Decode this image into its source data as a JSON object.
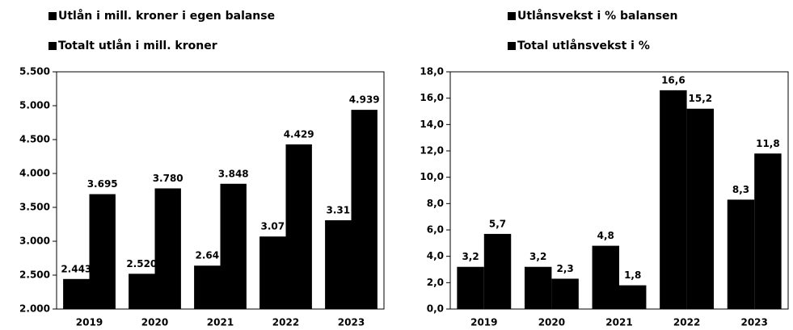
{
  "chart_data": [
    {
      "type": "bar",
      "categories": [
        "2019",
        "2020",
        "2021",
        "2022",
        "2023"
      ],
      "series": [
        {
          "name": "Utlån i mill. kroner i egen balanse",
          "color": "#000000",
          "values": [
            2443,
            2520,
            2640,
            3070,
            3310
          ],
          "value_labels": [
            "2.443",
            "2.520",
            "2.64",
            "3.07",
            "3.31"
          ]
        },
        {
          "name": "Totalt utlån i mill. kroner",
          "color": "#000000",
          "values": [
            3695,
            3780,
            3848,
            4429,
            4939
          ],
          "value_labels": [
            "3.695",
            "3.780",
            "3.848",
            "4.429",
            "4.939"
          ]
        }
      ],
      "ylim": [
        2000,
        5500
      ],
      "yticks": [
        {
          "value": 2000,
          "label": "2.000"
        },
        {
          "value": 2500,
          "label": "2.500"
        },
        {
          "value": 3000,
          "label": "3.000"
        },
        {
          "value": 3500,
          "label": "3.500"
        },
        {
          "value": 4000,
          "label": "4.000"
        },
        {
          "value": 4500,
          "label": "4.500"
        },
        {
          "value": 5000,
          "label": "5.000"
        },
        {
          "value": 5500,
          "label": "5.500"
        }
      ]
    },
    {
      "type": "bar",
      "categories": [
        "2019",
        "2020",
        "2021",
        "2022",
        "2023"
      ],
      "series": [
        {
          "name": "Utlånsvekst i % balansen",
          "color": "#000000",
          "values": [
            3.2,
            3.2,
            4.8,
            16.6,
            8.3
          ],
          "value_labels": [
            "3,2",
            "3,2",
            "4,8",
            "16,6",
            "8,3"
          ]
        },
        {
          "name": "Total utlånsvekst i %",
          "color": "#000000",
          "values": [
            5.7,
            2.3,
            1.8,
            15.2,
            11.8
          ],
          "value_labels": [
            "5,7",
            "2,3",
            "1,8",
            "15,2",
            "11,8"
          ]
        }
      ],
      "ylim": [
        0,
        18
      ],
      "yticks": [
        {
          "value": 0,
          "label": "0,0"
        },
        {
          "value": 2,
          "label": "2,0"
        },
        {
          "value": 4,
          "label": "4,0"
        },
        {
          "value": 6,
          "label": "6,0"
        },
        {
          "value": 8,
          "label": "8,0"
        },
        {
          "value": 10,
          "label": "10,0"
        },
        {
          "value": 12,
          "label": "12,0"
        },
        {
          "value": 14,
          "label": "14,0"
        },
        {
          "value": 16,
          "label": "16,0"
        },
        {
          "value": 18,
          "label": "18,0"
        }
      ]
    }
  ]
}
